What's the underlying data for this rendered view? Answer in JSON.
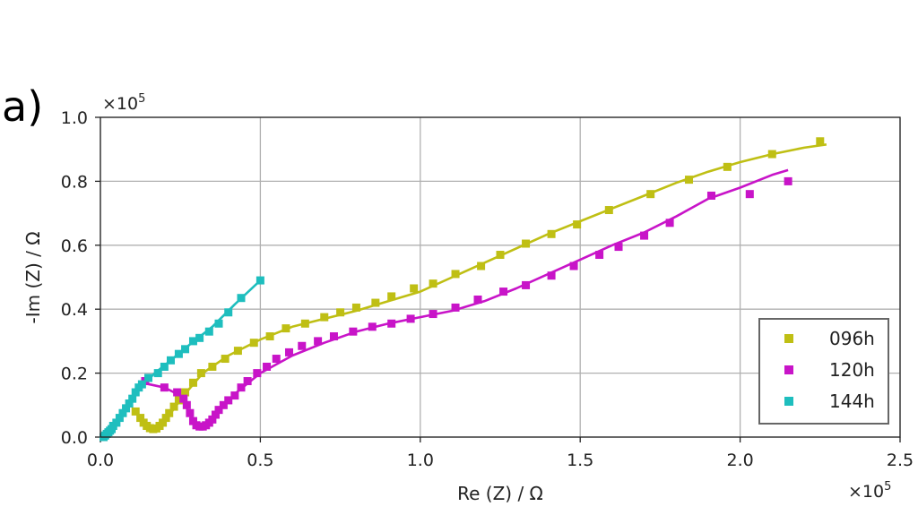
{
  "panel_label": "a)",
  "chart_data": {
    "type": "scatter",
    "xlabel": "Re (Z)  / Ω",
    "ylabel": "-Im (Z)  / Ω",
    "x_multiplier": "×10",
    "x_multiplier_exp": "5",
    "y_multiplier": "×10",
    "y_multiplier_exp": "5",
    "xlim": [
      0,
      2.5
    ],
    "ylim": [
      0,
      1.0
    ],
    "xticks": [
      0,
      0.5,
      1.0,
      1.5,
      2.0,
      2.5
    ],
    "xtick_labels": [
      "0.0",
      "0.5",
      "1.0",
      "1.5",
      "2.0",
      "2.5"
    ],
    "yticks": [
      0,
      0.2,
      0.4,
      0.6,
      0.8,
      1.0
    ],
    "ytick_labels": [
      "0.0",
      "0.2",
      "0.4",
      "0.6",
      "0.8",
      "1.0"
    ],
    "grid": true,
    "legend_position": "bottom-right",
    "series": [
      {
        "name": "096h",
        "color": "#bfbf14",
        "points": [
          [
            0.11,
            0.08
          ],
          [
            0.125,
            0.06
          ],
          [
            0.135,
            0.045
          ],
          [
            0.145,
            0.035
          ],
          [
            0.155,
            0.028
          ],
          [
            0.165,
            0.025
          ],
          [
            0.175,
            0.027
          ],
          [
            0.185,
            0.035
          ],
          [
            0.195,
            0.045
          ],
          [
            0.205,
            0.06
          ],
          [
            0.215,
            0.075
          ],
          [
            0.23,
            0.095
          ],
          [
            0.245,
            0.115
          ],
          [
            0.265,
            0.14
          ],
          [
            0.29,
            0.17
          ],
          [
            0.315,
            0.2
          ],
          [
            0.35,
            0.22
          ],
          [
            0.39,
            0.245
          ],
          [
            0.43,
            0.27
          ],
          [
            0.48,
            0.295
          ],
          [
            0.53,
            0.315
          ],
          [
            0.58,
            0.34
          ],
          [
            0.64,
            0.355
          ],
          [
            0.7,
            0.375
          ],
          [
            0.75,
            0.39
          ],
          [
            0.8,
            0.405
          ],
          [
            0.86,
            0.42
          ],
          [
            0.91,
            0.44
          ],
          [
            0.98,
            0.465
          ],
          [
            1.04,
            0.48
          ],
          [
            1.11,
            0.51
          ],
          [
            1.19,
            0.535
          ],
          [
            1.25,
            0.57
          ],
          [
            1.33,
            0.605
          ],
          [
            1.41,
            0.635
          ],
          [
            1.49,
            0.665
          ],
          [
            1.59,
            0.71
          ],
          [
            1.72,
            0.76
          ],
          [
            1.84,
            0.805
          ],
          [
            1.96,
            0.845
          ],
          [
            2.1,
            0.885
          ],
          [
            2.25,
            0.925
          ]
        ],
        "fit": [
          [
            0.11,
            0.08
          ],
          [
            0.14,
            0.045
          ],
          [
            0.165,
            0.026
          ],
          [
            0.19,
            0.035
          ],
          [
            0.22,
            0.075
          ],
          [
            0.26,
            0.13
          ],
          [
            0.32,
            0.2
          ],
          [
            0.4,
            0.255
          ],
          [
            0.5,
            0.305
          ],
          [
            0.6,
            0.345
          ],
          [
            0.7,
            0.37
          ],
          [
            0.8,
            0.395
          ],
          [
            0.9,
            0.425
          ],
          [
            1.0,
            0.455
          ],
          [
            1.1,
            0.5
          ],
          [
            1.2,
            0.545
          ],
          [
            1.3,
            0.59
          ],
          [
            1.4,
            0.635
          ],
          [
            1.5,
            0.675
          ],
          [
            1.6,
            0.715
          ],
          [
            1.7,
            0.755
          ],
          [
            1.8,
            0.795
          ],
          [
            1.9,
            0.83
          ],
          [
            2.0,
            0.86
          ],
          [
            2.1,
            0.885
          ],
          [
            2.2,
            0.905
          ],
          [
            2.27,
            0.915
          ]
        ]
      },
      {
        "name": "120h",
        "color": "#c814c8",
        "points": [
          [
            0.14,
            0.175
          ],
          [
            0.2,
            0.155
          ],
          [
            0.24,
            0.14
          ],
          [
            0.26,
            0.12
          ],
          [
            0.27,
            0.1
          ],
          [
            0.28,
            0.075
          ],
          [
            0.29,
            0.05
          ],
          [
            0.3,
            0.037
          ],
          [
            0.31,
            0.033
          ],
          [
            0.32,
            0.033
          ],
          [
            0.33,
            0.037
          ],
          [
            0.34,
            0.045
          ],
          [
            0.35,
            0.055
          ],
          [
            0.36,
            0.07
          ],
          [
            0.37,
            0.085
          ],
          [
            0.385,
            0.1
          ],
          [
            0.4,
            0.115
          ],
          [
            0.42,
            0.13
          ],
          [
            0.44,
            0.155
          ],
          [
            0.46,
            0.175
          ],
          [
            0.49,
            0.2
          ],
          [
            0.52,
            0.22
          ],
          [
            0.55,
            0.245
          ],
          [
            0.59,
            0.265
          ],
          [
            0.63,
            0.285
          ],
          [
            0.68,
            0.3
          ],
          [
            0.73,
            0.315
          ],
          [
            0.79,
            0.33
          ],
          [
            0.85,
            0.345
          ],
          [
            0.91,
            0.355
          ],
          [
            0.97,
            0.37
          ],
          [
            1.04,
            0.385
          ],
          [
            1.11,
            0.405
          ],
          [
            1.18,
            0.43
          ],
          [
            1.26,
            0.455
          ],
          [
            1.33,
            0.475
          ],
          [
            1.41,
            0.505
          ],
          [
            1.48,
            0.535
          ],
          [
            1.56,
            0.57
          ],
          [
            1.62,
            0.595
          ],
          [
            1.7,
            0.63
          ],
          [
            1.78,
            0.67
          ],
          [
            1.91,
            0.755
          ],
          [
            2.03,
            0.76
          ],
          [
            2.15,
            0.8
          ]
        ],
        "fit": [
          [
            0.13,
            0.17
          ],
          [
            0.2,
            0.155
          ],
          [
            0.25,
            0.13
          ],
          [
            0.28,
            0.07
          ],
          [
            0.3,
            0.038
          ],
          [
            0.32,
            0.032
          ],
          [
            0.34,
            0.045
          ],
          [
            0.37,
            0.08
          ],
          [
            0.42,
            0.135
          ],
          [
            0.5,
            0.2
          ],
          [
            0.6,
            0.255
          ],
          [
            0.7,
            0.295
          ],
          [
            0.8,
            0.33
          ],
          [
            0.9,
            0.355
          ],
          [
            1.0,
            0.375
          ],
          [
            1.1,
            0.395
          ],
          [
            1.2,
            0.425
          ],
          [
            1.3,
            0.465
          ],
          [
            1.4,
            0.51
          ],
          [
            1.5,
            0.555
          ],
          [
            1.6,
            0.6
          ],
          [
            1.7,
            0.64
          ],
          [
            1.8,
            0.69
          ],
          [
            1.9,
            0.745
          ],
          [
            2.0,
            0.78
          ],
          [
            2.1,
            0.82
          ],
          [
            2.15,
            0.835
          ]
        ]
      },
      {
        "name": "144h",
        "color": "#1ebebe",
        "points": [
          [
            0.01,
            0.0
          ],
          [
            0.015,
            0.005
          ],
          [
            0.02,
            0.01
          ],
          [
            0.025,
            0.015
          ],
          [
            0.03,
            0.02
          ],
          [
            0.035,
            0.025
          ],
          [
            0.04,
            0.035
          ],
          [
            0.05,
            0.045
          ],
          [
            0.06,
            0.06
          ],
          [
            0.07,
            0.075
          ],
          [
            0.08,
            0.09
          ],
          [
            0.09,
            0.105
          ],
          [
            0.1,
            0.12
          ],
          [
            0.11,
            0.14
          ],
          [
            0.12,
            0.155
          ],
          [
            0.13,
            0.165
          ],
          [
            0.15,
            0.185
          ],
          [
            0.18,
            0.2
          ],
          [
            0.2,
            0.22
          ],
          [
            0.22,
            0.24
          ],
          [
            0.245,
            0.26
          ],
          [
            0.265,
            0.275
          ],
          [
            0.29,
            0.3
          ],
          [
            0.31,
            0.31
          ],
          [
            0.34,
            0.33
          ],
          [
            0.37,
            0.355
          ],
          [
            0.4,
            0.39
          ],
          [
            0.44,
            0.435
          ],
          [
            0.5,
            0.49
          ]
        ],
        "fit": [
          [
            0.0,
            0.0
          ],
          [
            0.02,
            0.008
          ],
          [
            0.04,
            0.025
          ],
          [
            0.06,
            0.055
          ],
          [
            0.08,
            0.085
          ],
          [
            0.1,
            0.12
          ],
          [
            0.13,
            0.16
          ],
          [
            0.17,
            0.2
          ],
          [
            0.22,
            0.24
          ],
          [
            0.28,
            0.29
          ],
          [
            0.35,
            0.345
          ],
          [
            0.42,
            0.415
          ],
          [
            0.5,
            0.49
          ]
        ]
      }
    ]
  }
}
